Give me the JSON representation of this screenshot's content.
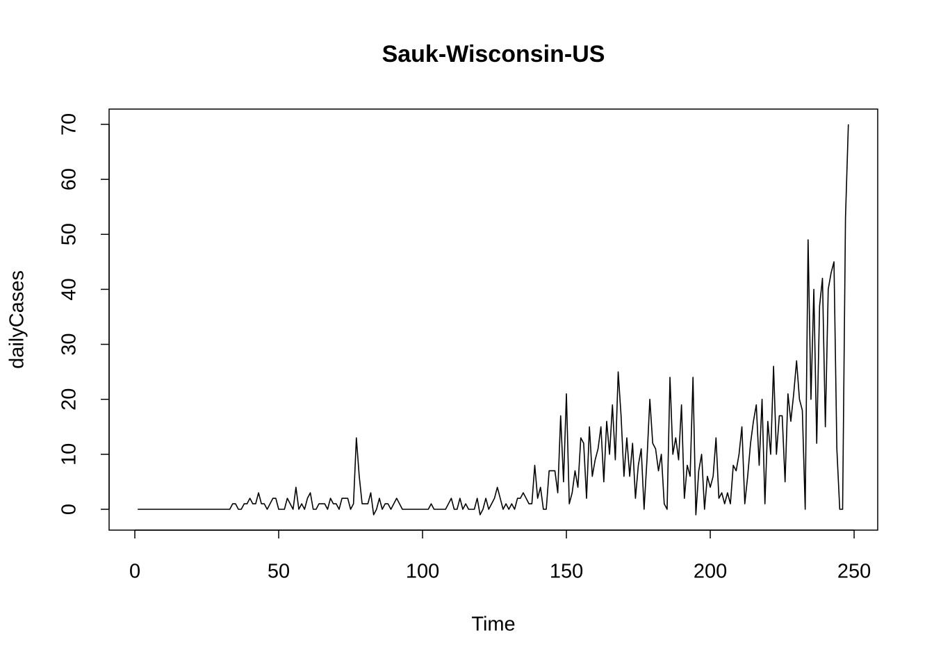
{
  "chart_data": {
    "type": "line",
    "title": "Sauk-Wisconsin-US",
    "x_label": "Time",
    "y_label": "dailyCases",
    "x": [
      1,
      2,
      3,
      4,
      5,
      6,
      7,
      8,
      9,
      10,
      11,
      12,
      13,
      14,
      15,
      16,
      17,
      18,
      19,
      20,
      21,
      22,
      23,
      24,
      25,
      26,
      27,
      28,
      29,
      30,
      31,
      32,
      33,
      34,
      35,
      36,
      37,
      38,
      39,
      40,
      41,
      42,
      43,
      44,
      45,
      46,
      47,
      48,
      49,
      50,
      51,
      52,
      53,
      54,
      55,
      56,
      57,
      58,
      59,
      60,
      61,
      62,
      63,
      64,
      65,
      66,
      67,
      68,
      69,
      70,
      71,
      72,
      73,
      74,
      75,
      76,
      77,
      78,
      79,
      80,
      81,
      82,
      83,
      84,
      85,
      86,
      87,
      88,
      89,
      90,
      91,
      92,
      93,
      94,
      95,
      96,
      97,
      98,
      99,
      100,
      101,
      102,
      103,
      104,
      105,
      106,
      107,
      108,
      109,
      110,
      111,
      112,
      113,
      114,
      115,
      116,
      117,
      118,
      119,
      120,
      121,
      122,
      123,
      124,
      125,
      126,
      127,
      128,
      129,
      130,
      131,
      132,
      133,
      134,
      135,
      136,
      137,
      138,
      139,
      140,
      141,
      142,
      143,
      144,
      145,
      146,
      147,
      148,
      149,
      150,
      151,
      152,
      153,
      154,
      155,
      156,
      157,
      158,
      159,
      160,
      161,
      162,
      163,
      164,
      165,
      166,
      167,
      168,
      169,
      170,
      171,
      172,
      173,
      174,
      175,
      176,
      177,
      178,
      179,
      180,
      181,
      182,
      183,
      184,
      185,
      186,
      187,
      188,
      189,
      190,
      191,
      192,
      193,
      194,
      195,
      196,
      197,
      198,
      199,
      200,
      201,
      202,
      203,
      204,
      205,
      206,
      207,
      208,
      209,
      210,
      211,
      212,
      213,
      214,
      215,
      216,
      217,
      218,
      219,
      220,
      221,
      222,
      223,
      224,
      225,
      226,
      227,
      228,
      229,
      230,
      231,
      232,
      233,
      234,
      235,
      236,
      237,
      238,
      239,
      240,
      241,
      242,
      243,
      244,
      245,
      246,
      247,
      248
    ],
    "series": [
      {
        "name": "dailyCases",
        "color": "#000000",
        "values": [
          0,
          0,
          0,
          0,
          0,
          0,
          0,
          0,
          0,
          0,
          0,
          0,
          0,
          0,
          0,
          0,
          0,
          0,
          0,
          0,
          0,
          0,
          0,
          0,
          0,
          0,
          0,
          0,
          0,
          0,
          0,
          0,
          0,
          1,
          1,
          0,
          0,
          1,
          1,
          2,
          1,
          1,
          3,
          1,
          1,
          0,
          1,
          2,
          2,
          0,
          0,
          0,
          2,
          1,
          0,
          4,
          0,
          1,
          0,
          2,
          3,
          0,
          0,
          1,
          1,
          1,
          0,
          2,
          1,
          1,
          0,
          2,
          2,
          2,
          0,
          1,
          13,
          6,
          1,
          1,
          1,
          3,
          -1,
          0,
          2,
          0,
          1,
          1,
          0,
          1,
          2,
          1,
          0,
          0,
          0,
          0,
          0,
          0,
          0,
          0,
          0,
          0,
          1,
          0,
          0,
          0,
          0,
          0,
          1,
          2,
          0,
          0,
          2,
          0,
          1,
          0,
          0,
          0,
          2,
          -1,
          0,
          2,
          0,
          1,
          2,
          4,
          2,
          0,
          1,
          0,
          1,
          0,
          2,
          2,
          3,
          2,
          1,
          1,
          8,
          2,
          4,
          0,
          0,
          7,
          7,
          7,
          3,
          17,
          5,
          21,
          1,
          3,
          7,
          4,
          13,
          12,
          2,
          15,
          6,
          9,
          11,
          15,
          5,
          16,
          10,
          19,
          9,
          25,
          17,
          6,
          13,
          6,
          12,
          2,
          8,
          11,
          0,
          9,
          20,
          12,
          11,
          7,
          10,
          1,
          0,
          24,
          10,
          13,
          9,
          19,
          2,
          8,
          6,
          24,
          -1,
          7,
          10,
          0,
          6,
          4,
          6,
          13,
          2,
          3,
          1,
          3,
          1,
          8,
          7,
          10,
          15,
          1,
          6,
          12,
          16,
          19,
          8,
          20,
          1,
          16,
          10,
          26,
          10,
          17,
          17,
          5,
          21,
          16,
          21,
          27,
          20,
          18,
          0,
          49,
          20,
          40,
          12,
          37,
          42,
          15,
          40,
          43,
          45,
          11,
          0,
          0,
          53,
          70
        ]
      }
    ],
    "xlim": [
      -8.94,
      258.2
    ],
    "ylim": [
      -3.79,
      72.78
    ],
    "xticks": [
      0,
      50,
      100,
      150,
      200,
      250
    ],
    "yticks": [
      0,
      10,
      20,
      30,
      40,
      50,
      60,
      70
    ]
  }
}
